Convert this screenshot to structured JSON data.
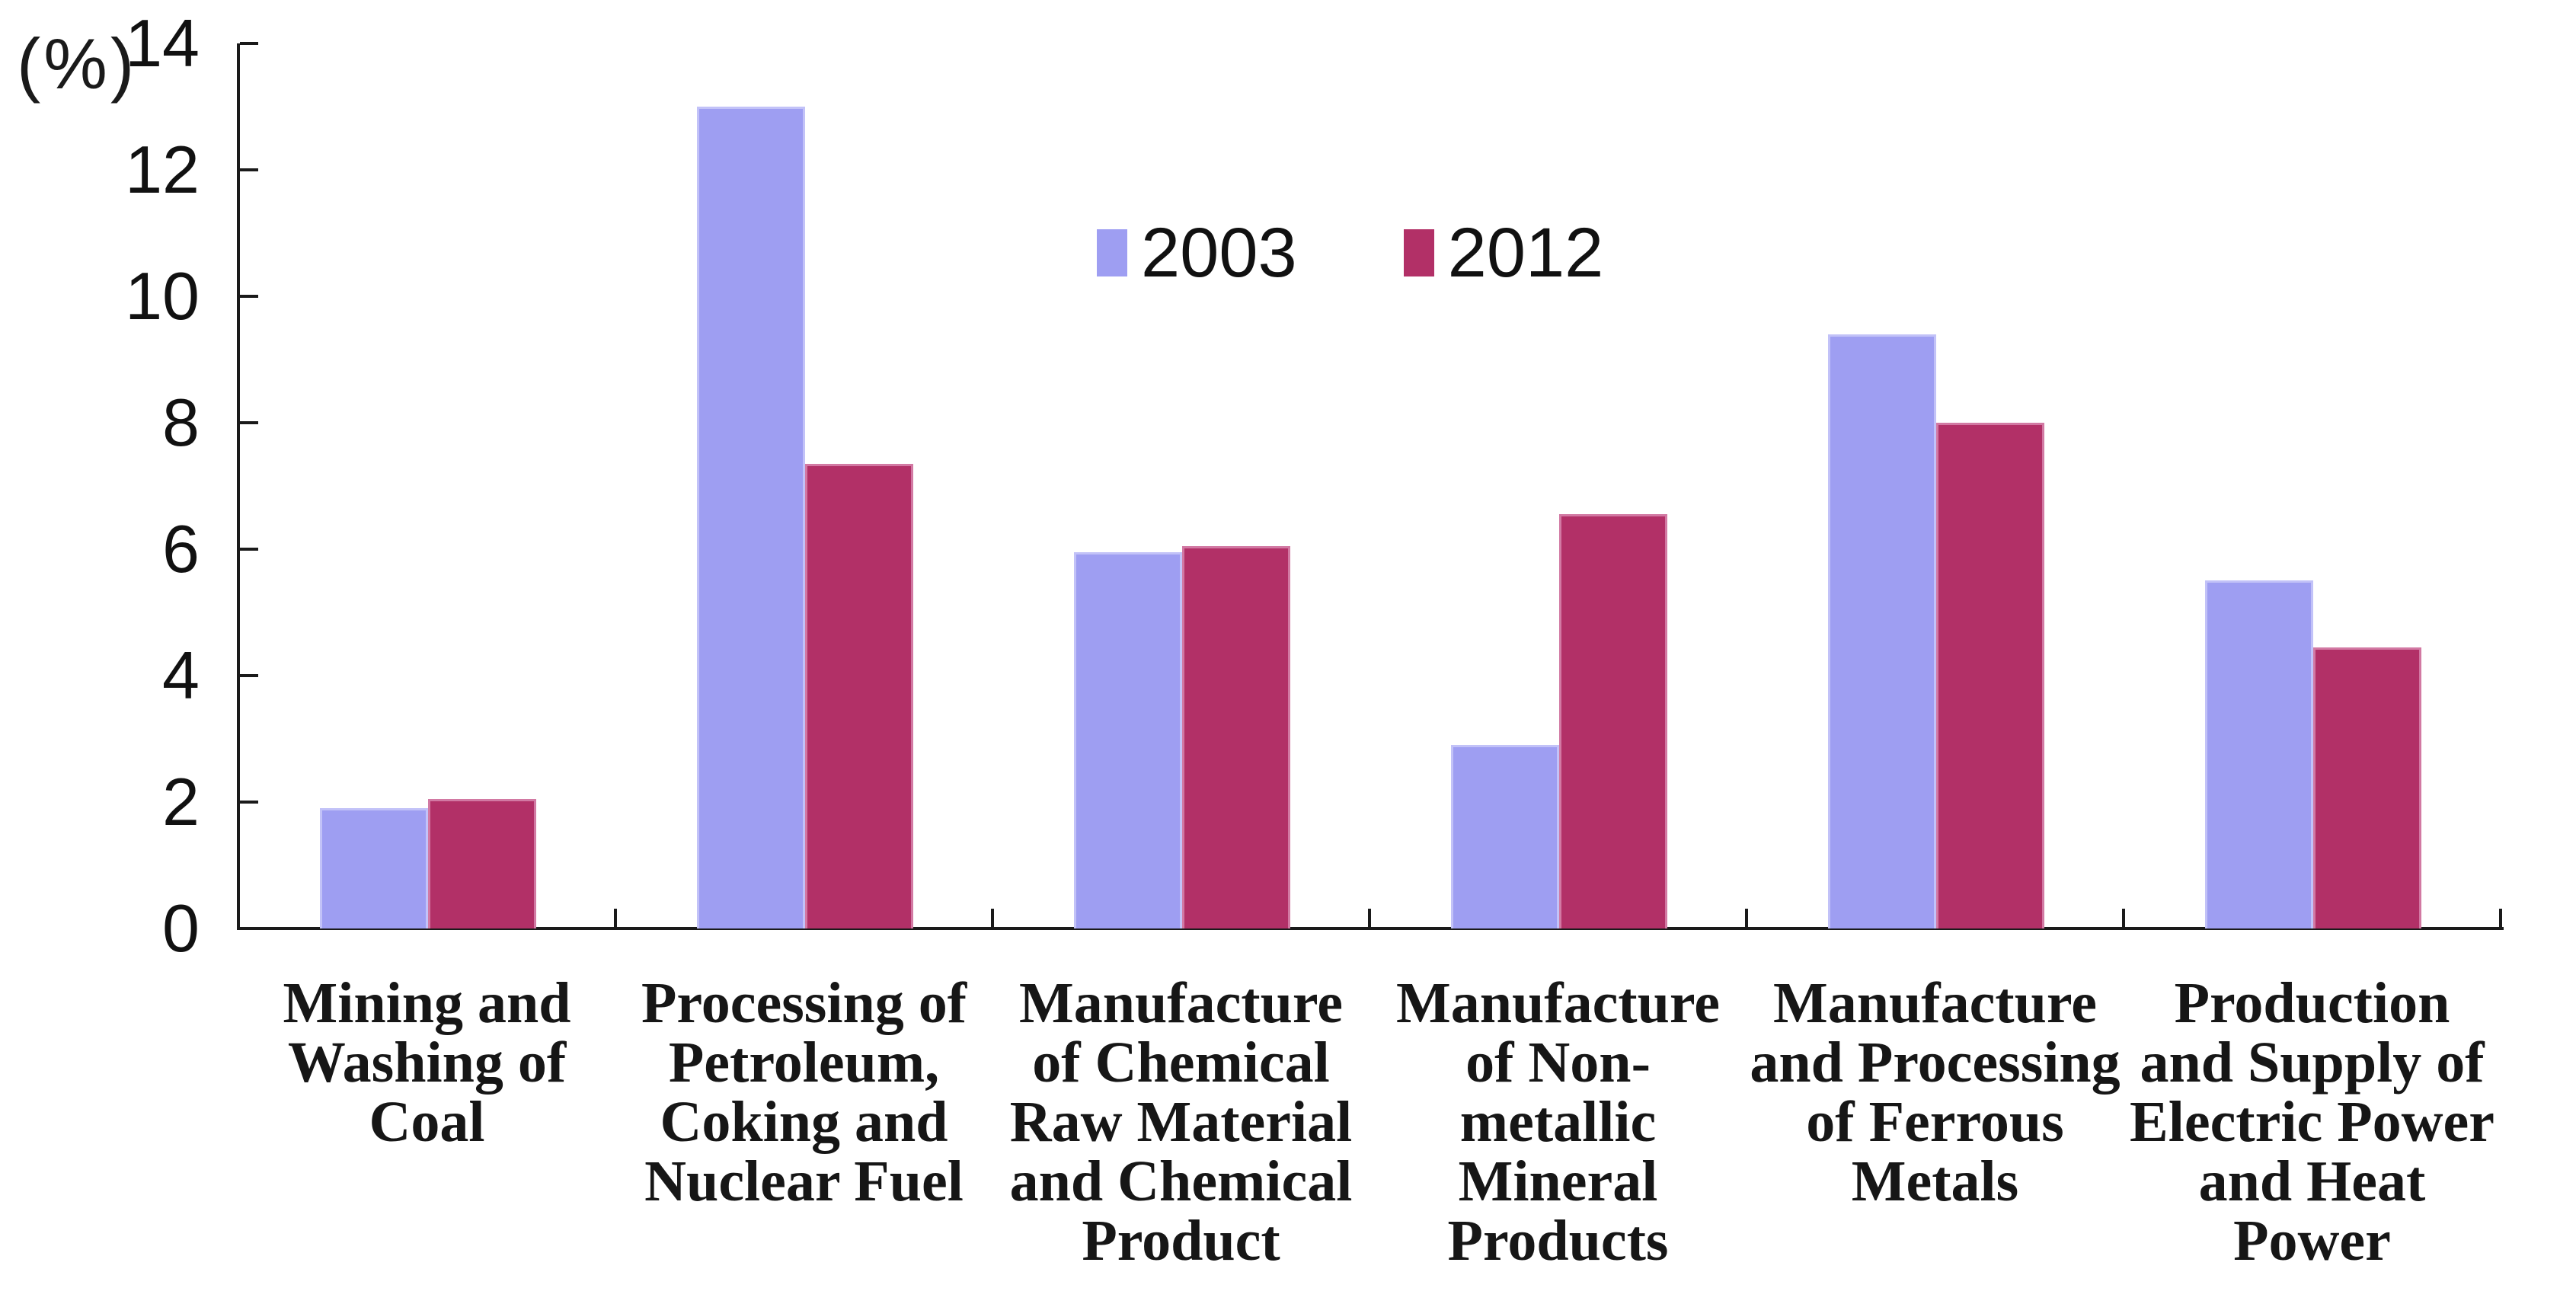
{
  "chart_data": {
    "type": "bar",
    "title": "",
    "unit_label": "(%)",
    "categories": [
      "Mining and\nWashing of\nCoal",
      "Processing of\nPetroleum,\nCoking and\nNuclear Fuel",
      "Manufacture\nof Chemical\nRaw Material\nand Chemical\nProduct",
      "Manufacture\nof Non-\nmetallic\nMineral\nProducts",
      "Manufacture\nand Processing\nof Ferrous\nMetals",
      "Production\nand Supply of\nElectric Power\nand Heat Power"
    ],
    "series": [
      {
        "name": "2003",
        "color": "#9e9ef2",
        "edge_color": "#c2c2f8",
        "values": [
          1.9,
          13.0,
          5.95,
          2.9,
          9.4,
          5.5
        ]
      },
      {
        "name": "2012",
        "color": "#b23067",
        "edge_color": "#d279a3",
        "values": [
          2.05,
          7.35,
          6.05,
          6.55,
          8.0,
          4.45
        ]
      }
    ],
    "ylabel": "(%)",
    "xlabel": "",
    "ylim": [
      0,
      14
    ],
    "ytick_step": 2,
    "yticks": [
      0,
      2,
      4,
      6,
      8,
      10,
      12,
      14
    ],
    "grid": false,
    "legend_position": "top-center",
    "axis_color": "#1a1a1a",
    "text_color": "#111111"
  }
}
